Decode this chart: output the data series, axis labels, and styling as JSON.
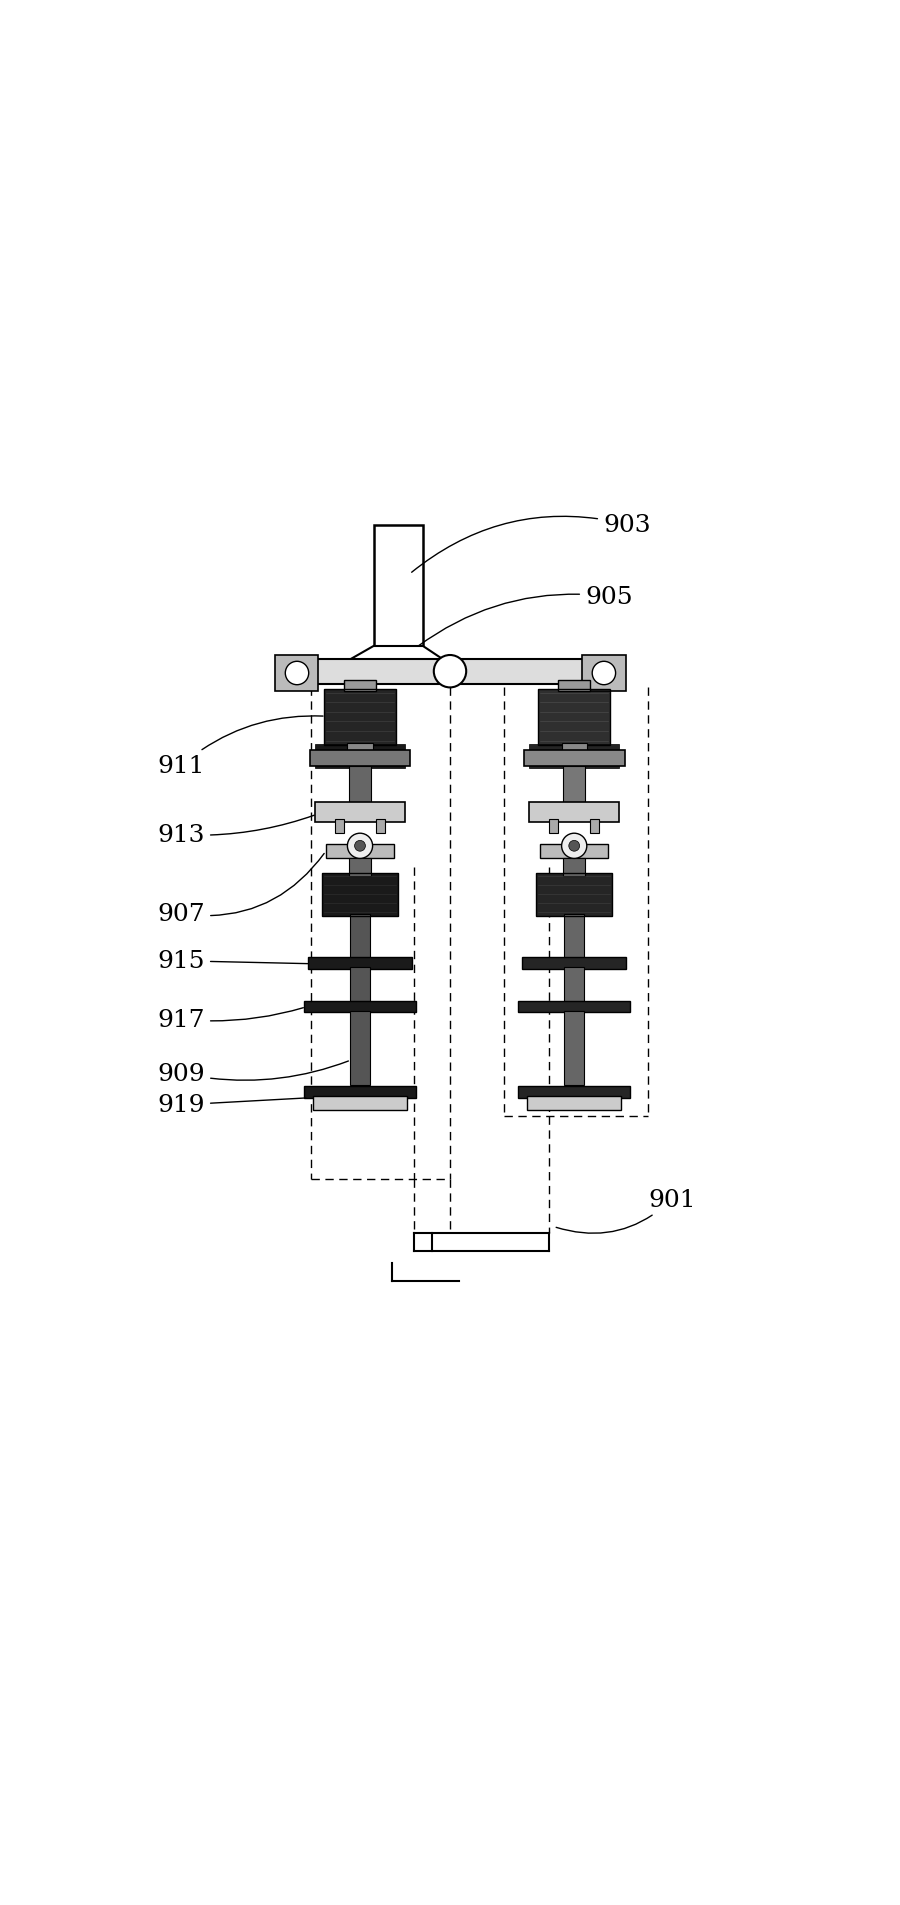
{
  "bg_color": "#ffffff",
  "line_color": "#000000",
  "dark_gray": "#222222",
  "mid_gray": "#666666",
  "light_gray": "#aaaaaa",
  "fig_width": 9.0,
  "fig_height": 19.06,
  "label_fontsize": 18
}
